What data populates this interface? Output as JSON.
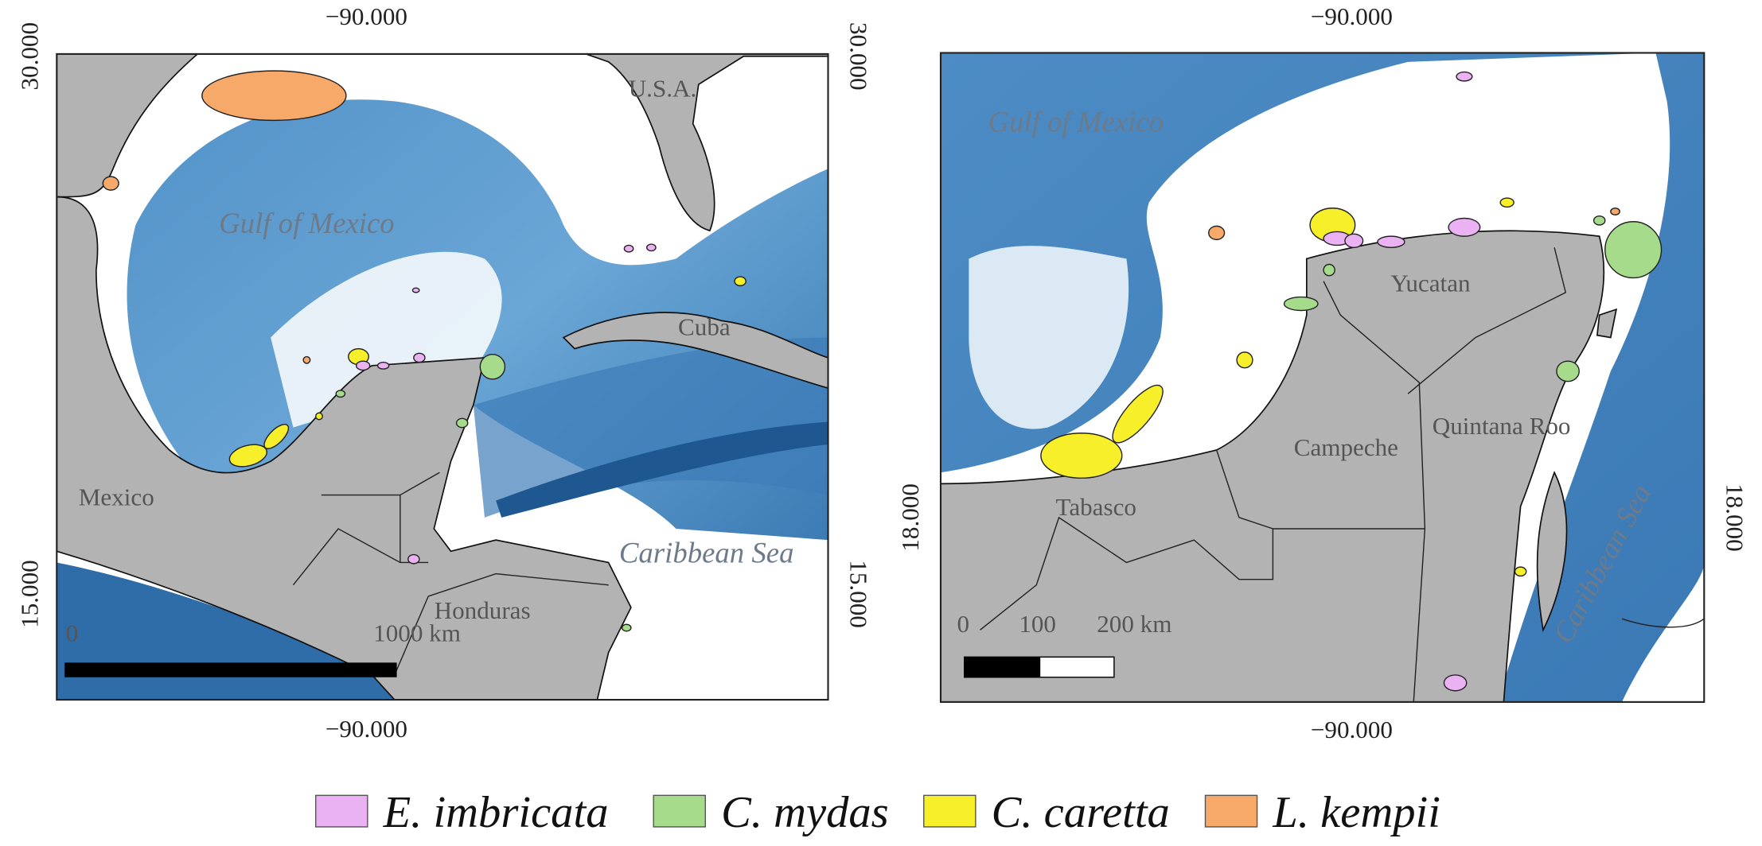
{
  "panels": [
    {
      "lon_ticks": [
        "−90.000"
      ],
      "lat_ticks": [
        "30.000",
        "15.000"
      ],
      "labels": [
        "Gulf of Mexico",
        "U.S.A.",
        "Cuba",
        "Mexico",
        "Honduras",
        "Caribbean Sea"
      ],
      "scale_bar": [
        "0",
        "1000 km"
      ]
    },
    {
      "lon_ticks": [
        "−90.000"
      ],
      "lat_ticks": [
        "18.000"
      ],
      "labels": [
        "Gulf of Mexico",
        "Yucatan",
        "Campeche",
        "Quintana Roo",
        "Tabasco",
        "Caribbean Sea"
      ],
      "scale_bar": [
        "0",
        "100",
        "200 km"
      ]
    }
  ],
  "legend": [
    {
      "name": "E. imbricata",
      "color": "#eab2f2"
    },
    {
      "name": "C. mydas",
      "color": "#a6db8c"
    },
    {
      "name": "C. caretta",
      "color": "#f6ef2a"
    },
    {
      "name": "L. kempii",
      "color": "#f7a96a"
    }
  ]
}
